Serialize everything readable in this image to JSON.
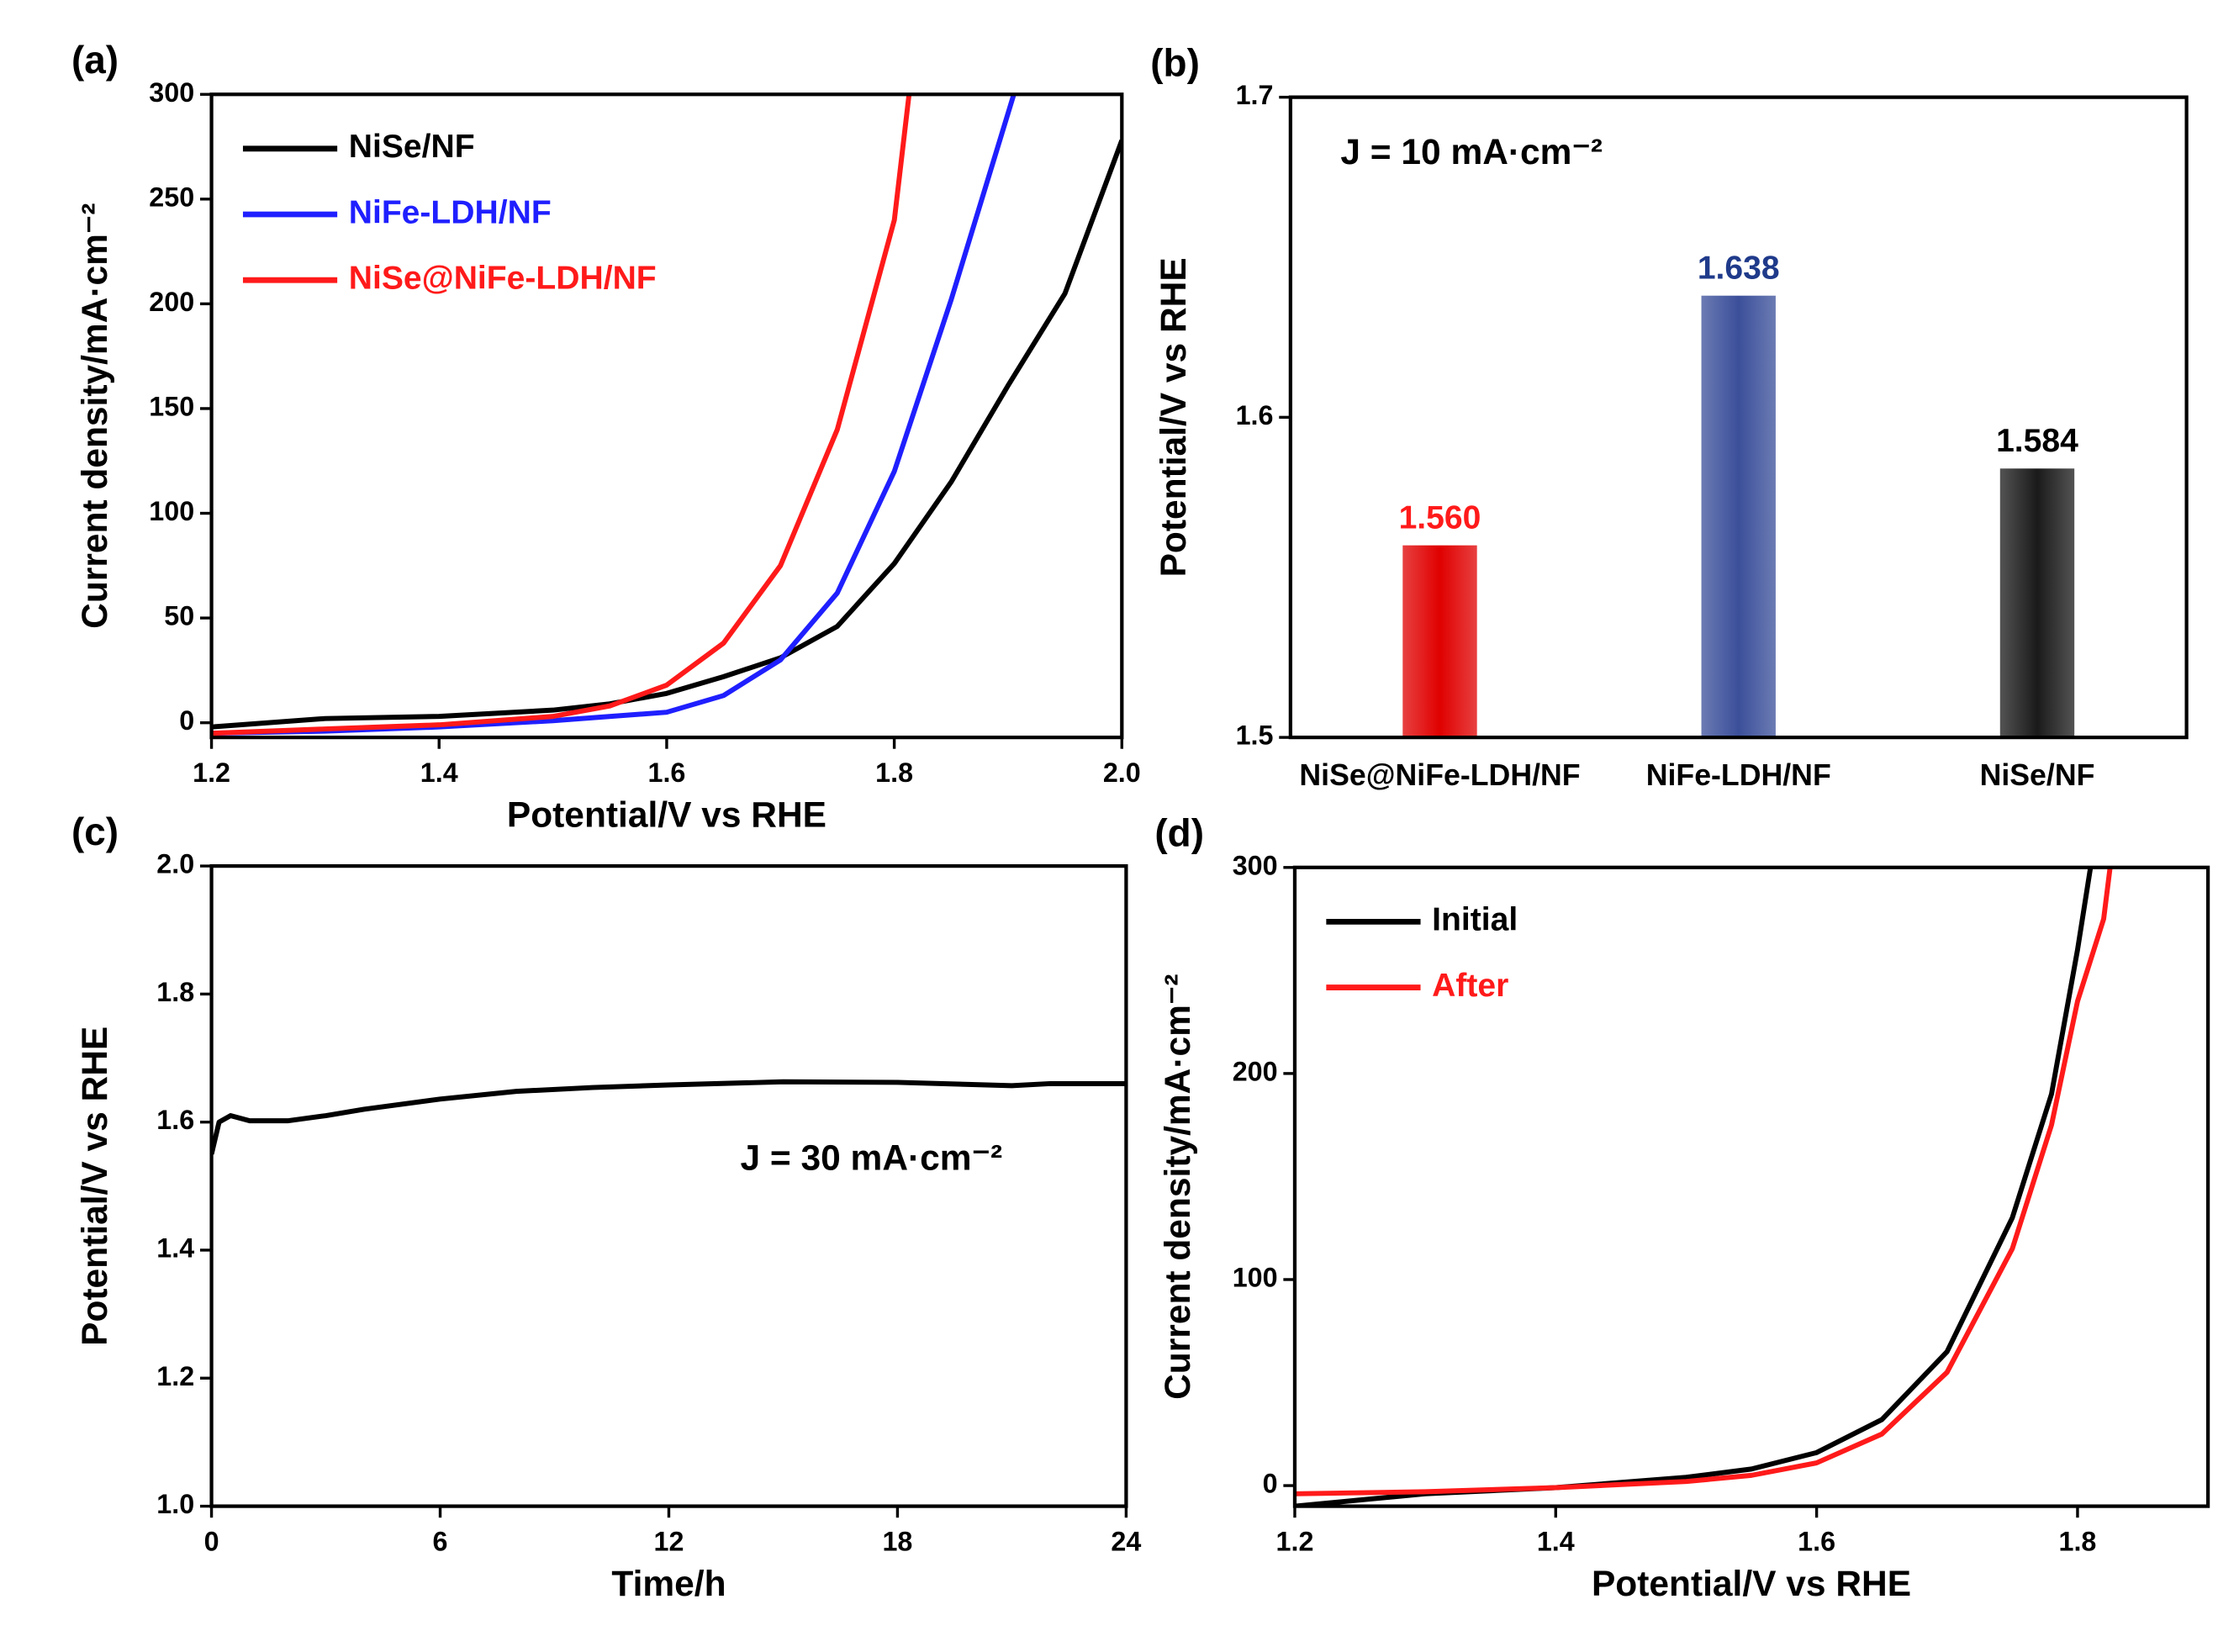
{
  "chart_data": [
    {
      "type": "line",
      "panel": "(a)",
      "xlabel": "Potential/V vs RHE",
      "ylabel": "Current density/mA·cm⁻²",
      "xlim": [
        1.2,
        2.0
      ],
      "xticks": [
        1.2,
        1.4,
        1.6,
        1.8,
        {
          "value": 2.0,
          "label": "2.0"
        }
      ],
      "ylim": [
        -7,
        300
      ],
      "yticks": [
        0,
        50,
        100,
        150,
        200,
        250,
        300
      ],
      "legend": "upper left",
      "series": [
        {
          "name": "NiSe/NF",
          "color": "#000000",
          "x": [
            1.2,
            1.3,
            1.4,
            1.5,
            1.55,
            1.6,
            1.65,
            1.7,
            1.75,
            1.8,
            1.85,
            1.9,
            1.95,
            2.0
          ],
          "values": [
            -2,
            2,
            3,
            6,
            9,
            14,
            22,
            31,
            46,
            76,
            115,
            161,
            205,
            278
          ]
        },
        {
          "name": "NiFe-LDH/NF",
          "color": "#1f1fff",
          "x": [
            1.2,
            1.3,
            1.4,
            1.5,
            1.6,
            1.65,
            1.7,
            1.75,
            1.8,
            1.85,
            1.905
          ],
          "values": [
            -5,
            -4,
            -2,
            1,
            5,
            13,
            30,
            62,
            120,
            202,
            300
          ]
        },
        {
          "name": "NiSe@NiFe-LDH/NF",
          "color": "#ff1a1a",
          "x": [
            1.2,
            1.3,
            1.4,
            1.5,
            1.55,
            1.6,
            1.65,
            1.7,
            1.75,
            1.8,
            1.813
          ],
          "values": [
            -5,
            -3,
            -1,
            3,
            8,
            18,
            38,
            75,
            140,
            240,
            300
          ]
        }
      ]
    },
    {
      "type": "bar",
      "panel": "(b)",
      "ylabel": "Potential/V vs RHE",
      "annotation": "J = 10 mA·cm⁻²",
      "categories": [
        "NiSe@NiFe-LDH/NF",
        "NiFe-LDH/NF",
        "NiSe/NF"
      ],
      "values": [
        1.56,
        1.638,
        1.584
      ],
      "value_labels": [
        "1.560",
        "1.638",
        "1.584"
      ],
      "colors": [
        "#e00000",
        "#3b4f9a",
        "#1a1a1a"
      ],
      "label_colors": [
        "#ff1a1a",
        "#1f3a8a",
        "#000000"
      ],
      "ylim": [
        1.5,
        1.7
      ],
      "yticks": [
        1.5,
        1.6,
        1.7
      ]
    },
    {
      "type": "line",
      "panel": "(c)",
      "xlabel": "Time/h",
      "ylabel": "Potential/V vs RHE",
      "annotation": "J = 30 mA·cm⁻²",
      "xlim": [
        0,
        24
      ],
      "xticks": [
        0,
        6,
        12,
        18,
        24
      ],
      "ylim": [
        1.0,
        2.0
      ],
      "yticks": [
        {
          "value": 1.0,
          "label": "1.0"
        },
        1.2,
        1.4,
        1.6,
        1.8,
        {
          "value": 2.0,
          "label": "2.0"
        }
      ],
      "series": [
        {
          "name": "Potential",
          "color": "#000000",
          "x": [
            0,
            0.2,
            0.5,
            1,
            2,
            3,
            4,
            6,
            8,
            10,
            12,
            15,
            18,
            21,
            22,
            24
          ],
          "values": [
            1.55,
            1.6,
            1.61,
            1.602,
            1.602,
            1.61,
            1.62,
            1.636,
            1.648,
            1.654,
            1.658,
            1.663,
            1.662,
            1.657,
            1.66,
            1.66
          ]
        }
      ]
    },
    {
      "type": "line",
      "panel": "(d)",
      "xlabel": "Potential/V vs RHE",
      "ylabel": "Current density/mA·cm⁻²",
      "xlim": [
        1.2,
        1.9
      ],
      "xticks": [
        1.2,
        1.4,
        1.6,
        1.8
      ],
      "ylim": [
        -10,
        300
      ],
      "yticks": [
        0,
        100,
        200,
        300
      ],
      "legend": "upper left",
      "series": [
        {
          "name": "Initial",
          "color": "#000000",
          "x": [
            1.2,
            1.3,
            1.4,
            1.5,
            1.55,
            1.6,
            1.65,
            1.7,
            1.75,
            1.78,
            1.8,
            1.81
          ],
          "values": [
            -10,
            -4,
            -1,
            4,
            8,
            16,
            32,
            65,
            130,
            190,
            260,
            300
          ]
        },
        {
          "name": "After",
          "color": "#ff1a1a",
          "x": [
            1.2,
            1.3,
            1.4,
            1.5,
            1.55,
            1.6,
            1.65,
            1.7,
            1.75,
            1.78,
            1.8,
            1.82,
            1.825
          ],
          "values": [
            -4,
            -3,
            -1,
            2,
            5,
            11,
            25,
            55,
            115,
            175,
            235,
            275,
            300
          ]
        }
      ]
    }
  ]
}
